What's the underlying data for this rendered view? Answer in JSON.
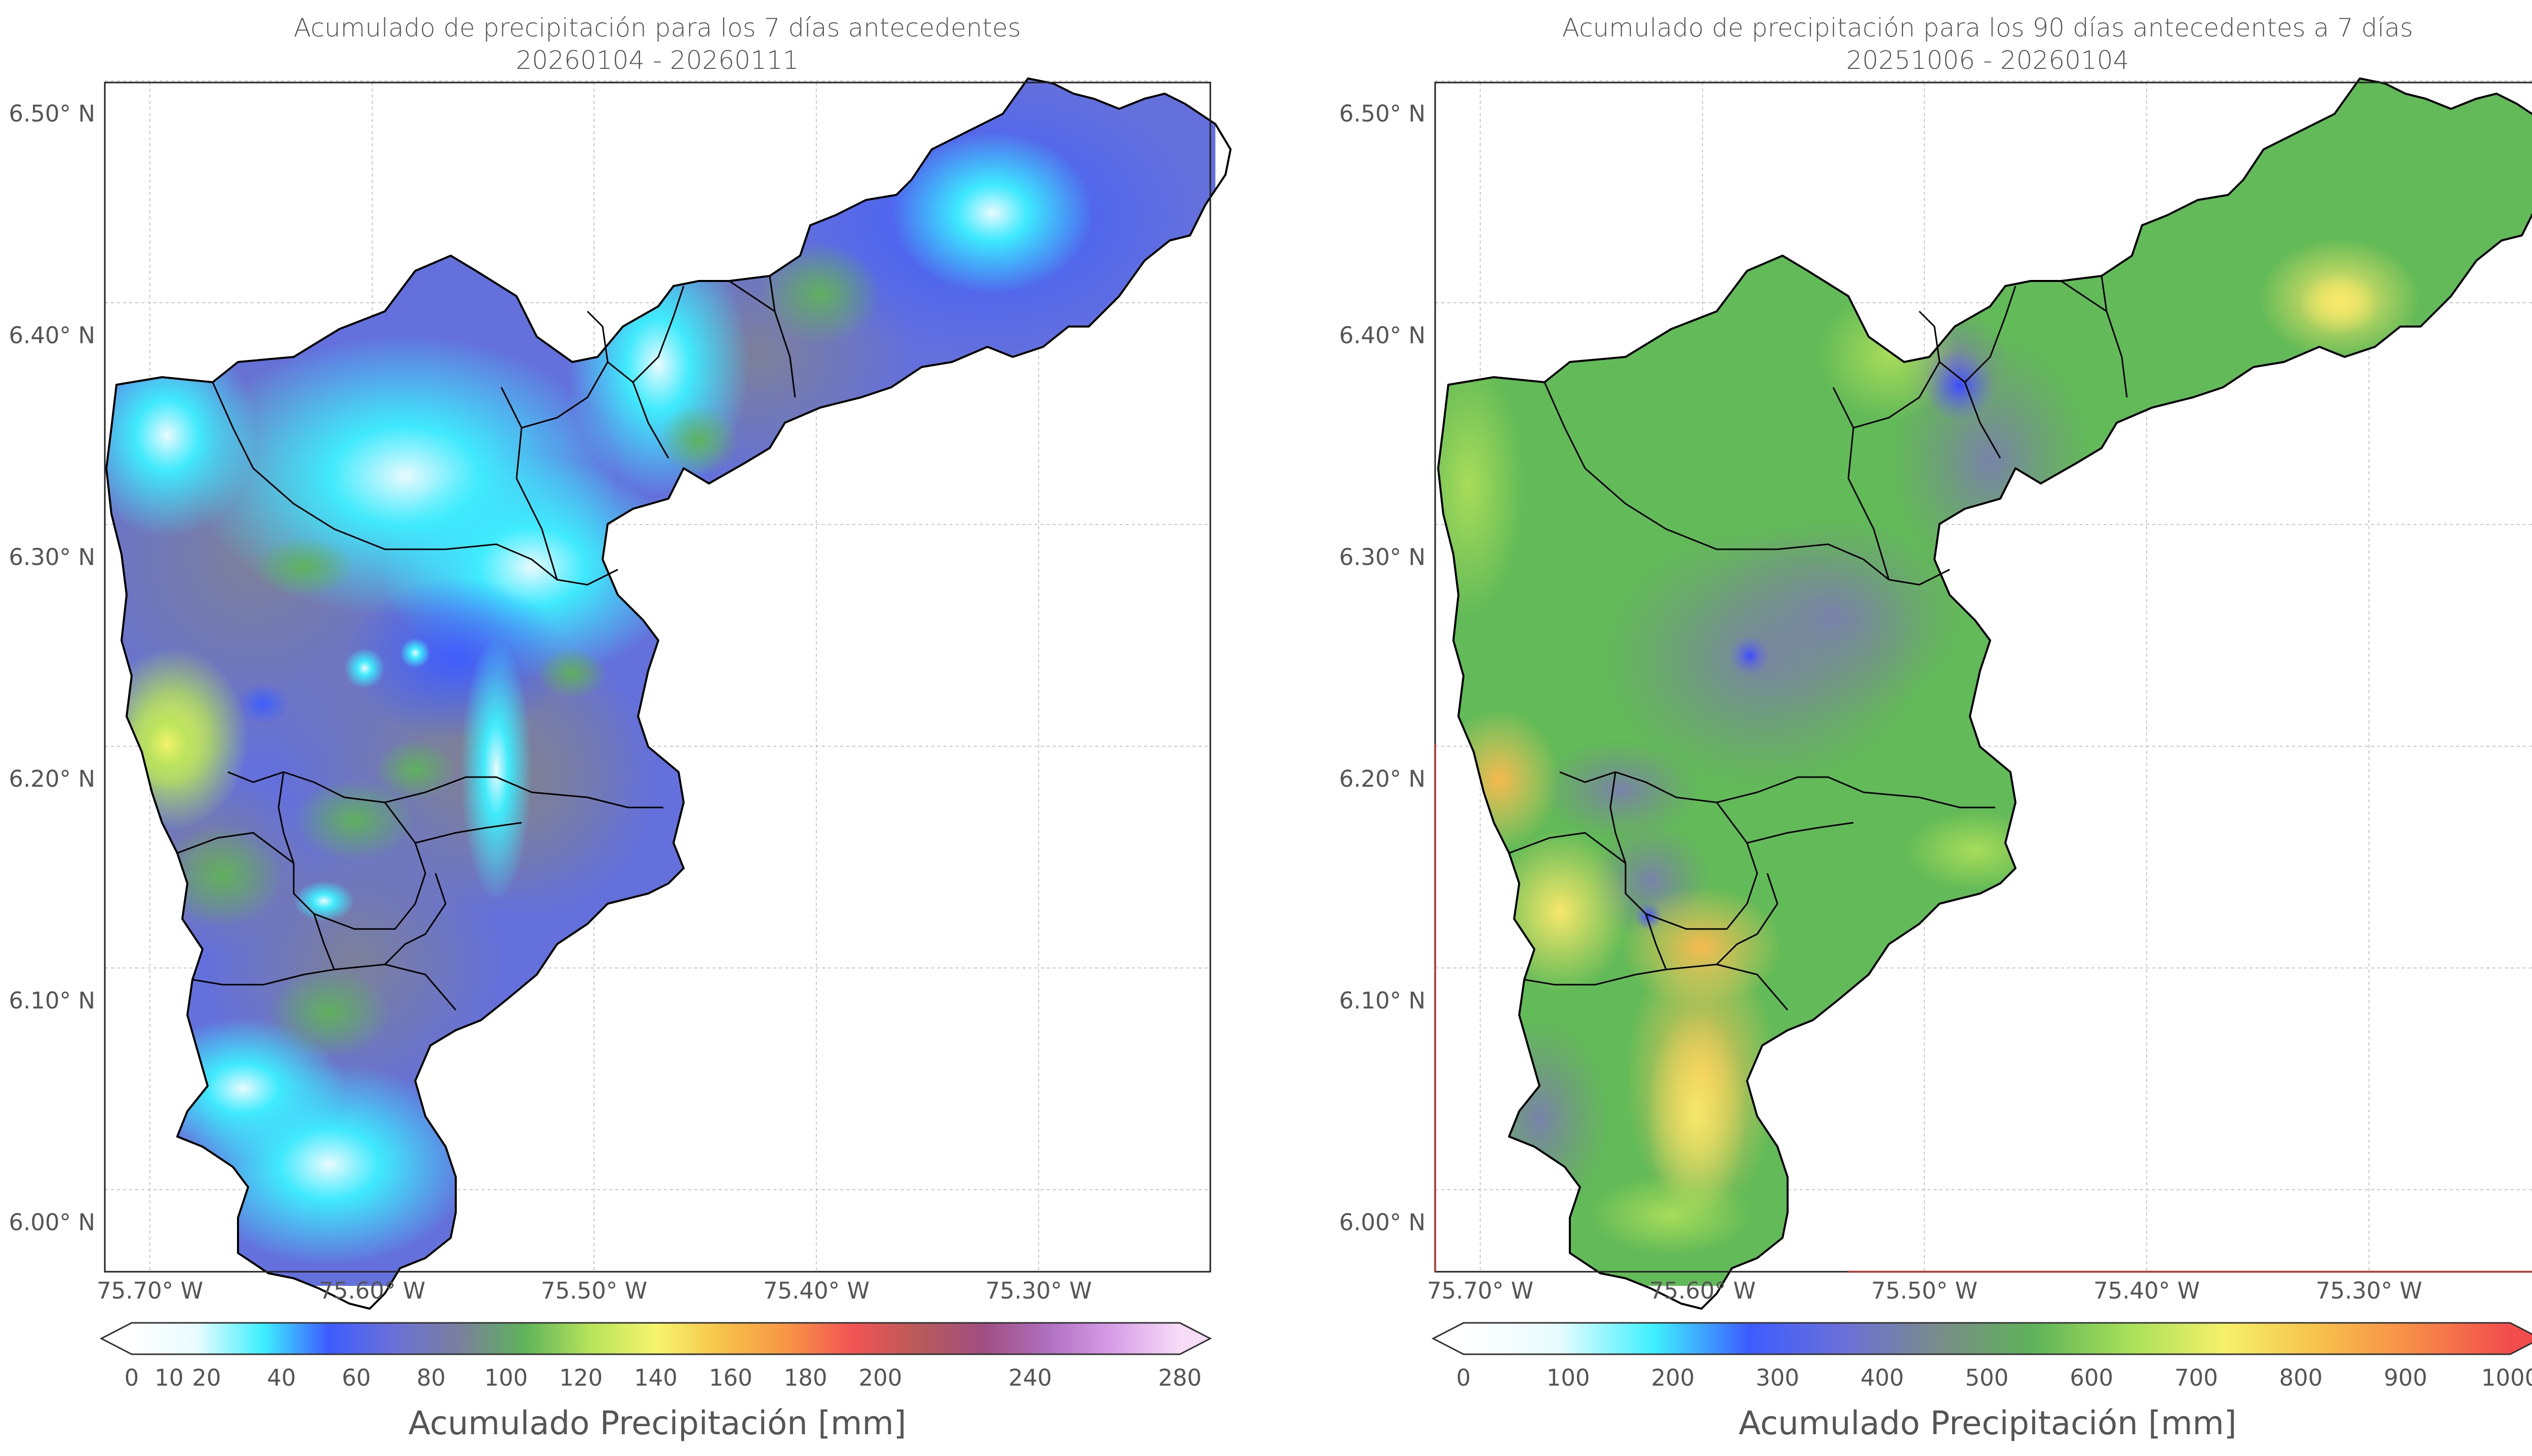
{
  "panels": [
    {
      "title_line1": "Acumulado de precipitación para los 7 días antecedentes",
      "title_line2": "20260104 - 20260111",
      "lat_labels": [
        "6.50° N",
        "6.40° N",
        "6.30° N",
        "6.20° N",
        "6.10° N",
        "6.00° N"
      ],
      "lon_labels": [
        "75.70° W",
        "75.60° W",
        "75.50° W",
        "75.40° W",
        "75.30° W"
      ],
      "colorbar_ticks": [
        "0",
        "10",
        "20",
        "40",
        "60",
        "80",
        "100",
        "120",
        "140",
        "160",
        "180",
        "200",
        "240",
        "280"
      ],
      "colorbar_label": "Acumulado Precipitación [mm]",
      "colorbar_colors": [
        "#ffffff",
        "#e8fbff",
        "#3ef0ff",
        "#3d5cff",
        "#6b70d8",
        "#7a7f9e",
        "#5fb35a",
        "#b7e35a",
        "#f6f56e",
        "#f7c24a",
        "#f79545",
        "#f25454",
        "#b85a5a",
        "#a04e80",
        "#b070c0",
        "#d8a0e8",
        "#f7dcf7"
      ],
      "colorbar_stops": [
        0,
        10,
        20,
        40,
        60,
        80,
        100,
        120,
        140,
        160,
        180,
        200,
        240,
        280
      ]
    },
    {
      "title_line1": "Acumulado de precipitación para los 90 días antecedentes a 7 días",
      "title_line2": "20251006 - 20260104",
      "lat_labels": [
        "6.50° N",
        "6.40° N",
        "6.30° N",
        "6.20° N",
        "6.10° N",
        "6.00° N"
      ],
      "lon_labels": [
        "75.70° W",
        "75.60° W",
        "75.50° W",
        "75.40° W",
        "75.30° W"
      ],
      "colorbar_ticks": [
        "0",
        "100",
        "200",
        "300",
        "400",
        "500",
        "600",
        "700",
        "800",
        "900",
        "1000"
      ],
      "colorbar_label": "Acumulado Precipitación [mm]",
      "colorbar_colors": [
        "#ffffff",
        "#e8fbff",
        "#3ef0ff",
        "#3d5cff",
        "#6b70d8",
        "#7a8c8a",
        "#5fb35a",
        "#a8e05a",
        "#f6f06a",
        "#f7c04c",
        "#f78a48",
        "#f24c4c"
      ],
      "colorbar_stops": [
        0,
        100,
        200,
        300,
        400,
        500,
        600,
        700,
        800,
        900,
        1000
      ]
    }
  ]
}
